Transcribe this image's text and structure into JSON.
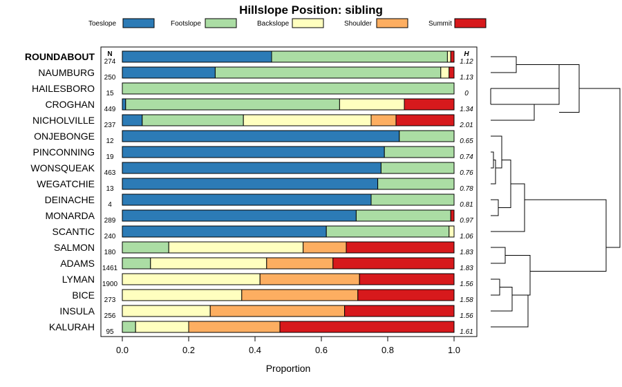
{
  "chart_data": {
    "type": "bar",
    "orientation": "horizontal",
    "stacked": true,
    "title": "Hillslope Position: sibling",
    "xlabel": "Proportion",
    "xlim": [
      0,
      1
    ],
    "x_ticks": [
      "0.0",
      "0.2",
      "0.4",
      "0.6",
      "0.8",
      "1.0"
    ],
    "n_header": "N",
    "h_header": "H",
    "legend_position": "top",
    "series": [
      {
        "name": "Toeslope",
        "color": "#2c7bb6"
      },
      {
        "name": "Footslope",
        "color": "#abdda4"
      },
      {
        "name": "Backslope",
        "color": "#ffffbf"
      },
      {
        "name": "Shoulder",
        "color": "#fdae61"
      },
      {
        "name": "Summit",
        "color": "#d7191c"
      }
    ],
    "categories": [
      {
        "name": "ROUNDABOUT",
        "bold": true,
        "n": "274",
        "h": "1.12",
        "values": [
          0.45,
          0.53,
          0.01,
          0.0,
          0.01
        ]
      },
      {
        "name": "NAUMBURG",
        "bold": false,
        "n": "250",
        "h": "1.13",
        "values": [
          0.28,
          0.68,
          0.025,
          0.0,
          0.015
        ]
      },
      {
        "name": "HAILESBORO",
        "bold": false,
        "n": "15",
        "h": "0",
        "values": [
          0.0,
          1.0,
          0.0,
          0.0,
          0.0
        ]
      },
      {
        "name": "CROGHAN",
        "bold": false,
        "n": "449",
        "h": "1.34",
        "values": [
          0.01,
          0.645,
          0.195,
          0.0,
          0.15
        ]
      },
      {
        "name": "NICHOLVILLE",
        "bold": false,
        "n": "237",
        "h": "2.01",
        "values": [
          0.06,
          0.305,
          0.385,
          0.075,
          0.175
        ]
      },
      {
        "name": "ONJEBONGE",
        "bold": false,
        "n": "12",
        "h": "0.65",
        "values": [
          0.835,
          0.165,
          0.0,
          0.0,
          0.0
        ]
      },
      {
        "name": "PINCONNING",
        "bold": false,
        "n": "19",
        "h": "0.74",
        "values": [
          0.79,
          0.21,
          0.0,
          0.0,
          0.0
        ]
      },
      {
        "name": "WONSQUEAK",
        "bold": false,
        "n": "463",
        "h": "0.76",
        "values": [
          0.78,
          0.22,
          0.0,
          0.0,
          0.0
        ]
      },
      {
        "name": "WEGATCHIE",
        "bold": false,
        "n": "13",
        "h": "0.78",
        "values": [
          0.77,
          0.23,
          0.0,
          0.0,
          0.0
        ]
      },
      {
        "name": "DEINACHE",
        "bold": false,
        "n": "4",
        "h": "0.81",
        "values": [
          0.75,
          0.25,
          0.0,
          0.0,
          0.0
        ]
      },
      {
        "name": "MONARDA",
        "bold": false,
        "n": "289",
        "h": "0.97",
        "values": [
          0.705,
          0.285,
          0.0,
          0.0,
          0.01
        ]
      },
      {
        "name": "SCANTIC",
        "bold": false,
        "n": "240",
        "h": "1.06",
        "values": [
          0.615,
          0.37,
          0.015,
          0.0,
          0.0
        ]
      },
      {
        "name": "SALMON",
        "bold": false,
        "n": "180",
        "h": "1.83",
        "values": [
          0.0,
          0.14,
          0.405,
          0.13,
          0.325
        ]
      },
      {
        "name": "ADAMS",
        "bold": false,
        "n": "1461",
        "h": "1.83",
        "values": [
          0.0,
          0.085,
          0.35,
          0.2,
          0.365
        ]
      },
      {
        "name": "LYMAN",
        "bold": false,
        "n": "1900",
        "h": "1.56",
        "values": [
          0.0,
          0.0,
          0.415,
          0.3,
          0.285
        ]
      },
      {
        "name": "BICE",
        "bold": false,
        "n": "273",
        "h": "1.58",
        "values": [
          0.0,
          0.0,
          0.36,
          0.35,
          0.29
        ]
      },
      {
        "name": "INSULA",
        "bold": false,
        "n": "256",
        "h": "1.56",
        "values": [
          0.0,
          0.0,
          0.265,
          0.405,
          0.33
        ]
      },
      {
        "name": "KALURAH",
        "bold": false,
        "n": "95",
        "h": "1.61",
        "values": [
          0.0,
          0.04,
          0.16,
          0.275,
          0.525
        ]
      }
    ]
  }
}
